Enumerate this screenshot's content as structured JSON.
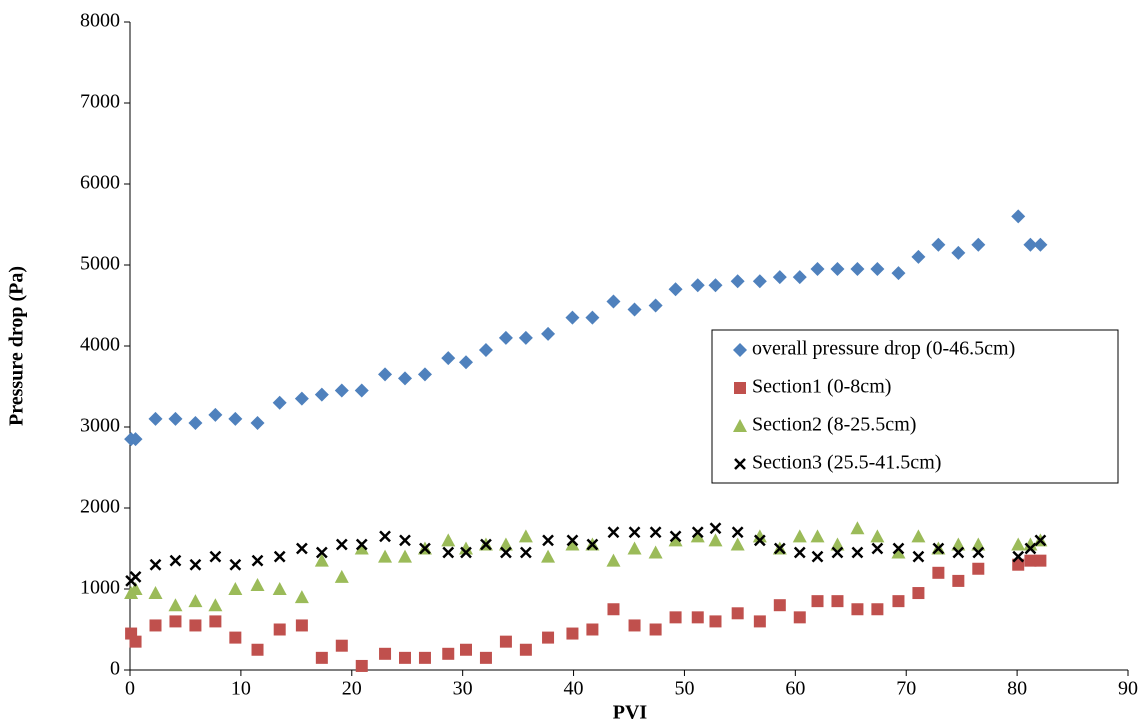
{
  "chart_data": {
    "type": "scatter",
    "x_label": "PVI",
    "y_label": "Pressure drop (Pa)",
    "xlim": [
      0,
      90
    ],
    "xticks": [
      0,
      10,
      20,
      30,
      40,
      50,
      60,
      70,
      80,
      90
    ],
    "ylim": [
      0,
      8000
    ],
    "yticks": [
      0,
      1000,
      2000,
      3000,
      4000,
      5000,
      6000,
      7000,
      8000
    ],
    "grid": false,
    "legend": "center right",
    "x": [
      0.1,
      0.5,
      2.3,
      4.1,
      5.9,
      7.7,
      9.5,
      11.5,
      13.5,
      15.5,
      17.3,
      19.1,
      20.9,
      23.0,
      24.8,
      26.6,
      28.7,
      30.3,
      32.1,
      33.9,
      35.7,
      37.7,
      39.9,
      41.7,
      43.6,
      45.5,
      47.4,
      49.2,
      51.2,
      52.8,
      54.8,
      56.8,
      58.6,
      60.4,
      62.0,
      63.8,
      65.6,
      67.4,
      69.3,
      71.1,
      72.9,
      74.7,
      76.5,
      80.1,
      81.2,
      82.1
    ],
    "series": [
      {
        "name": "overall pressure drop (0-46.5cm)",
        "color": "#4f81bd",
        "marker": "diamond",
        "values": [
          2850,
          2850,
          3100,
          3100,
          3050,
          3150,
          3100,
          3050,
          3300,
          3350,
          3400,
          3450,
          3450,
          3650,
          3600,
          3650,
          3850,
          3800,
          3950,
          4100,
          4100,
          4150,
          4350,
          4350,
          4550,
          4450,
          4500,
          4700,
          4750,
          4750,
          4800,
          4800,
          4850,
          4850,
          4950,
          4950,
          4950,
          4950,
          4900,
          5100,
          5250,
          5150,
          5250,
          5600,
          5250,
          5250
        ]
      },
      {
        "name": "Section1 (0-8cm)",
        "color": "#c0504d",
        "marker": "square",
        "values": [
          450,
          350,
          550,
          600,
          550,
          600,
          400,
          250,
          500,
          550,
          150,
          300,
          50,
          200,
          150,
          150,
          200,
          250,
          150,
          350,
          250,
          400,
          450,
          500,
          750,
          550,
          500,
          650,
          650,
          600,
          700,
          600,
          800,
          650,
          850,
          850,
          750,
          750,
          850,
          950,
          1200,
          1100,
          1250,
          1300,
          1350,
          1350
        ]
      },
      {
        "name": "Section2 (8-25.5cm)",
        "color": "#9bbb59",
        "marker": "triangle",
        "values": [
          950,
          1000,
          950,
          800,
          850,
          800,
          1000,
          1050,
          1000,
          900,
          1350,
          1150,
          1500,
          1400,
          1400,
          1500,
          1600,
          1500,
          1550,
          1550,
          1650,
          1400,
          1550,
          1550,
          1350,
          1500,
          1450,
          1600,
          1650,
          1600,
          1550,
          1650,
          1500,
          1650,
          1650,
          1550,
          1750,
          1650,
          1450,
          1650,
          1500,
          1550,
          1550,
          1550,
          1550,
          1600
        ]
      },
      {
        "name": "Section3 (25.5-41.5cm)",
        "color": "#000000",
        "marker": "x",
        "values": [
          1100,
          1150,
          1300,
          1350,
          1300,
          1400,
          1300,
          1350,
          1400,
          1500,
          1450,
          1550,
          1550,
          1650,
          1600,
          1500,
          1450,
          1450,
          1550,
          1450,
          1450,
          1600,
          1600,
          1550,
          1700,
          1700,
          1700,
          1650,
          1700,
          1750,
          1700,
          1600,
          1500,
          1450,
          1400,
          1450,
          1450,
          1500,
          1500,
          1400,
          1500,
          1450,
          1450,
          1400,
          1500,
          1600
        ]
      }
    ]
  }
}
